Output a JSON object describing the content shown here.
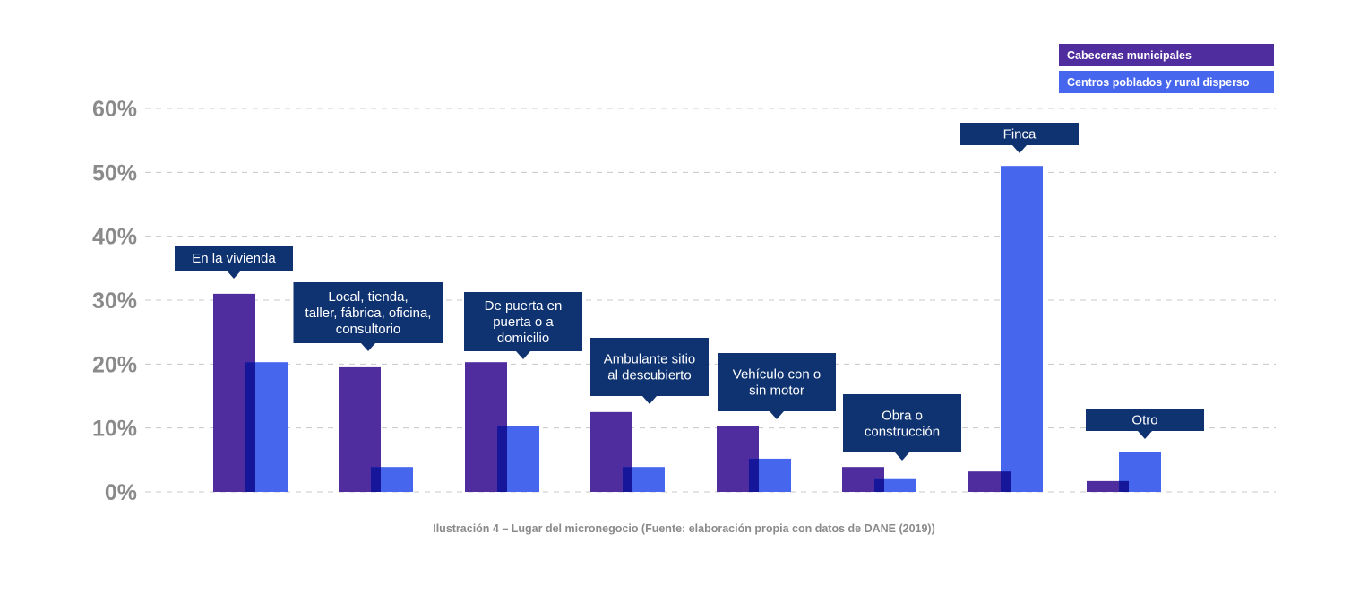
{
  "chart_data": {
    "type": "bar",
    "ylim": [
      0,
      60
    ],
    "yticks": [
      0,
      10,
      20,
      30,
      40,
      50,
      60
    ],
    "ytick_labels": [
      "0%",
      "10%",
      "20%",
      "30%",
      "40%",
      "50%",
      "60%"
    ],
    "grid": true,
    "legend_position": "top-right",
    "categories": [
      [
        "En la vivienda"
      ],
      [
        "Local, tienda,",
        "taller, fábrica, oficina,",
        "consultorio"
      ],
      [
        "De puerta en",
        "puerta o a",
        "domicilio"
      ],
      [
        "Ambulante sitio",
        "al descubierto"
      ],
      [
        "Vehículo con o",
        "sin motor"
      ],
      [
        "Obra o",
        "construcción"
      ],
      [
        "Finca"
      ],
      [
        "Otro"
      ]
    ],
    "series": [
      {
        "name": "Cabeceras municipales",
        "color": "#4f2d9e",
        "values": [
          31,
          19.5,
          20.3,
          12.5,
          10.3,
          3.9,
          3.2,
          1.7
        ]
      },
      {
        "name": "Centros poblados y rural disperso",
        "color": "#4766ee",
        "values": [
          20.3,
          3.9,
          10.3,
          3.9,
          5.2,
          2.0,
          51,
          6.3
        ]
      }
    ],
    "overlap_color": "#15169a",
    "callout_color": "#0f3371",
    "caption": "Ilustración 4 – Lugar del micronegocio (Fuente: elaboración propia con datos de DANE (2019))"
  }
}
